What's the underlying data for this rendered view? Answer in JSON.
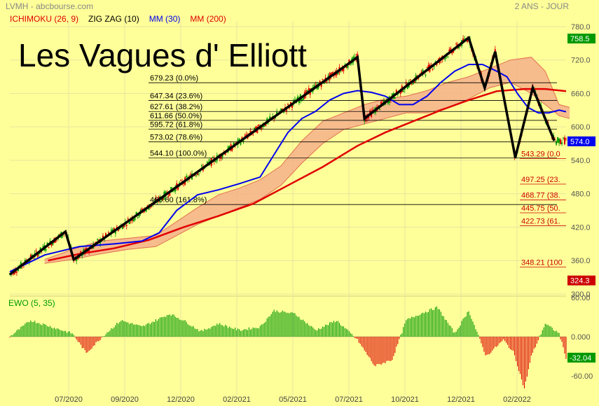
{
  "header": {
    "symbol": "LVMH - abcbourse.com",
    "period": "2 ANS - JOUR",
    "indicators": [
      {
        "label": "ICHIMOKU (26, 9)",
        "color": "#e00000"
      },
      {
        "label": "ZIG ZAG (10)",
        "color": "#000000"
      },
      {
        "label": "MM (30)",
        "color": "#0000ee"
      },
      {
        "label": "MM (200)",
        "color": "#e00000"
      }
    ],
    "overlay_title": "Les Vagues d' Elliott"
  },
  "chart_data": [
    {
      "type": "line",
      "name": "price-panel",
      "ylim": [
        300,
        790
      ],
      "y_ticks": [
        300,
        360,
        420,
        480,
        540,
        600,
        660,
        720,
        780
      ],
      "y_tick_labels": [
        "300.0",
        "360.0",
        "420.0",
        "480.0",
        "540.0",
        "600.0",
        "660.0",
        "720.0",
        "780.0"
      ],
      "x_ticks": [
        "07/2020",
        "09/2020",
        "12/2020",
        "02/2021",
        "05/2021",
        "07/2021",
        "10/2021",
        "12/2021",
        "02/2022"
      ],
      "price_badges": [
        {
          "label": "758.5",
          "value": 758.5,
          "color": "#009900"
        },
        {
          "label": "574.0",
          "value": 574.0,
          "color": "#0000ee"
        },
        {
          "label": "324.3",
          "value": 324.3,
          "color": "#cc0000"
        }
      ],
      "fib_up": [
        {
          "label": "679.23  (0.0%)",
          "value": 679.23
        },
        {
          "label": "647.34  (23.6%)",
          "value": 647.34
        },
        {
          "label": "627.61  (38.2%)",
          "value": 627.61
        },
        {
          "label": "611.66  (50.0%)",
          "value": 611.66
        },
        {
          "label": "595.72  (61.8%)",
          "value": 595.72
        },
        {
          "label": "573.02  (78.6%)",
          "value": 573.02
        },
        {
          "label": "544.10  (100.0%)",
          "value": 544.1
        },
        {
          "label": "460.60  (161.8%)",
          "value": 460.6
        }
      ],
      "fib_down": [
        {
          "label": "543.29  (0.0",
          "value": 543.29
        },
        {
          "label": "497.25  (23.",
          "value": 497.25
        },
        {
          "label": "468.77  (38.",
          "value": 468.77
        },
        {
          "label": "445.75  (50.",
          "value": 445.75
        },
        {
          "label": "422.73  (61.",
          "value": 422.73
        },
        {
          "label": "348.21  (100",
          "value": 348.21
        }
      ],
      "zigzag": [
        [
          0,
          335
        ],
        [
          80,
          412
        ],
        [
          92,
          362
        ],
        [
          215,
          470
        ],
        [
          500,
          725
        ],
        [
          510,
          615
        ],
        [
          660,
          760
        ],
        [
          683,
          670
        ],
        [
          698,
          735
        ],
        [
          727,
          545
        ],
        [
          752,
          670
        ],
        [
          783,
          575
        ]
      ],
      "ma30": [
        [
          0,
          340
        ],
        [
          50,
          370
        ],
        [
          100,
          385
        ],
        [
          150,
          390
        ],
        [
          190,
          395
        ],
        [
          215,
          410
        ],
        [
          240,
          450
        ],
        [
          270,
          478
        ],
        [
          300,
          487
        ],
        [
          330,
          498
        ],
        [
          360,
          510
        ],
        [
          380,
          550
        ],
        [
          400,
          590
        ],
        [
          420,
          615
        ],
        [
          440,
          628
        ],
        [
          460,
          648
        ],
        [
          480,
          660
        ],
        [
          500,
          665
        ],
        [
          520,
          662
        ],
        [
          540,
          655
        ],
        [
          560,
          640
        ],
        [
          580,
          640
        ],
        [
          600,
          655
        ],
        [
          620,
          680
        ],
        [
          640,
          700
        ],
        [
          660,
          712
        ],
        [
          680,
          712
        ],
        [
          700,
          700
        ],
        [
          715,
          690
        ],
        [
          730,
          660
        ],
        [
          745,
          635
        ],
        [
          760,
          625
        ],
        [
          775,
          625
        ],
        [
          790,
          630
        ],
        [
          800,
          627
        ]
      ],
      "ma200": [
        [
          55,
          360
        ],
        [
          100,
          372
        ],
        [
          150,
          382
        ],
        [
          200,
          397
        ],
        [
          250,
          420
        ],
        [
          300,
          440
        ],
        [
          350,
          462
        ],
        [
          400,
          495
        ],
        [
          450,
          528
        ],
        [
          500,
          566
        ],
        [
          540,
          590
        ],
        [
          580,
          610
        ],
        [
          620,
          630
        ],
        [
          660,
          648
        ],
        [
          700,
          664
        ],
        [
          740,
          668
        ],
        [
          770,
          668
        ],
        [
          800,
          664
        ]
      ],
      "cloud": {
        "upper": [
          [
            50,
            362
          ],
          [
            90,
            380
          ],
          [
            130,
            395
          ],
          [
            170,
            400
          ],
          [
            210,
            405
          ],
          [
            240,
            430
          ],
          [
            270,
            455
          ],
          [
            300,
            478
          ],
          [
            330,
            490
          ],
          [
            360,
            505
          ],
          [
            390,
            530
          ],
          [
            420,
            575
          ],
          [
            450,
            610
          ],
          [
            480,
            625
          ],
          [
            510,
            640
          ],
          [
            540,
            650
          ],
          [
            570,
            655
          ],
          [
            600,
            665
          ],
          [
            630,
            680
          ],
          [
            660,
            690
          ],
          [
            690,
            705
          ],
          [
            720,
            720
          ],
          [
            750,
            725
          ],
          [
            770,
            700
          ],
          [
            790,
            640
          ],
          [
            805,
            635
          ]
        ],
        "lower": [
          [
            50,
            355
          ],
          [
            90,
            362
          ],
          [
            130,
            372
          ],
          [
            170,
            380
          ],
          [
            210,
            385
          ],
          [
            240,
            405
          ],
          [
            270,
            425
          ],
          [
            300,
            440
          ],
          [
            330,
            455
          ],
          [
            360,
            470
          ],
          [
            390,
            495
          ],
          [
            420,
            535
          ],
          [
            450,
            570
          ],
          [
            480,
            595
          ],
          [
            510,
            605
          ],
          [
            540,
            615
          ],
          [
            570,
            625
          ],
          [
            600,
            625
          ],
          [
            630,
            635
          ],
          [
            660,
            650
          ],
          [
            690,
            670
          ],
          [
            720,
            680
          ],
          [
            750,
            660
          ],
          [
            770,
            640
          ],
          [
            790,
            620
          ],
          [
            805,
            615
          ]
        ]
      }
    },
    {
      "type": "bar",
      "name": "EWO (5, 35)",
      "title": "EWO (5, 35)",
      "ylim": [
        -90,
        60
      ],
      "y_ticks": [
        60,
        0,
        -60
      ],
      "y_tick_labels": [
        "60.00",
        "0.000",
        "-60.00"
      ],
      "last_value_badge": {
        "label": "-32.04",
        "value": -32.04,
        "color": "#009900"
      },
      "waves": [
        [
          0,
          0
        ],
        [
          30,
          25
        ],
        [
          60,
          15
        ],
        [
          90,
          5
        ],
        [
          110,
          -25
        ],
        [
          135,
          2
        ],
        [
          160,
          25
        ],
        [
          190,
          15
        ],
        [
          230,
          35
        ],
        [
          250,
          25
        ],
        [
          275,
          8
        ],
        [
          300,
          20
        ],
        [
          330,
          10
        ],
        [
          360,
          15
        ],
        [
          380,
          40
        ],
        [
          410,
          35
        ],
        [
          440,
          10
        ],
        [
          470,
          25
        ],
        [
          500,
          -5
        ],
        [
          525,
          -45
        ],
        [
          550,
          -35
        ],
        [
          570,
          25
        ],
        [
          590,
          35
        ],
        [
          615,
          45
        ],
        [
          640,
          5
        ],
        [
          660,
          40
        ],
        [
          685,
          -30
        ],
        [
          710,
          -5
        ],
        [
          725,
          -25
        ],
        [
          740,
          -80
        ],
        [
          750,
          -30
        ],
        [
          770,
          20
        ],
        [
          790,
          5
        ],
        [
          800,
          -32
        ]
      ]
    }
  ]
}
